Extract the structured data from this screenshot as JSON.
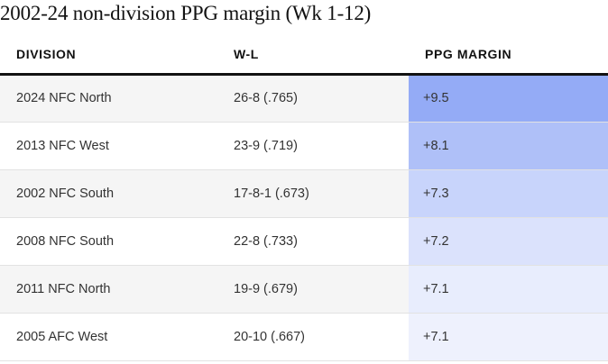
{
  "title": "2002-24 non-division PPG margin (Wk 1-12)",
  "table": {
    "headers": {
      "division": "DIVISION",
      "wl": "W-L",
      "ppg": "PPG MARGIN"
    },
    "rows": [
      {
        "division": "2024 NFC North",
        "wl": "26-8 (.765)",
        "ppg": "+9.5",
        "ppg_value": 9.5,
        "heat_color": "#94abf6"
      },
      {
        "division": "2013 NFC West",
        "wl": "23-9 (.719)",
        "ppg": "+8.1",
        "ppg_value": 8.1,
        "heat_color": "#afc0f8"
      },
      {
        "division": "2002 NFC South",
        "wl": "17-8-1 (.673)",
        "ppg": "+7.3",
        "ppg_value": 7.3,
        "heat_color": "#c8d4fb"
      },
      {
        "division": "2008 NFC South",
        "wl": "22-8 (.733)",
        "ppg": "+7.2",
        "ppg_value": 7.2,
        "heat_color": "#dbe2fc"
      },
      {
        "division": "2011 NFC North",
        "wl": "19-9 (.679)",
        "ppg": "+7.1",
        "ppg_value": 7.1,
        "heat_color": "#e8edfd"
      },
      {
        "division": "2005 AFC West",
        "wl": "20-10 (.667)",
        "ppg": "+7.1",
        "ppg_value": 7.1,
        "heat_color": "#eef1fd"
      }
    ]
  },
  "colors": {
    "header_rule": "#121212",
    "row_stripe": "#f5f5f5",
    "row_divider": "#e2e2e2"
  }
}
